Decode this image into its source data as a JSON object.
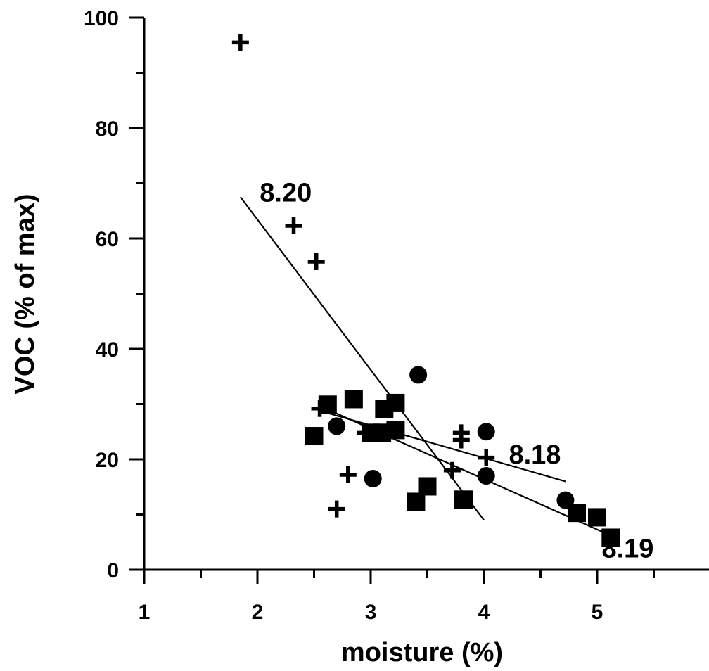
{
  "chart_data": {
    "type": "scatter",
    "title": "",
    "xlabel": "moisture (%)",
    "ylabel": "VOC (% of max)",
    "xlim": [
      1,
      6
    ],
    "ylim": [
      0,
      100
    ],
    "x_ticks": [
      {
        "value": 1,
        "label": "1"
      },
      {
        "value": 2,
        "label": "2"
      },
      {
        "value": 3,
        "label": "3"
      },
      {
        "value": 4,
        "label": "4"
      },
      {
        "value": 5,
        "label": "5"
      }
    ],
    "y_ticks": [
      {
        "value": 0,
        "label": "0"
      },
      {
        "value": 20,
        "label": "20"
      },
      {
        "value": 40,
        "label": "40"
      },
      {
        "value": 60,
        "label": "60"
      },
      {
        "value": 80,
        "label": "80"
      },
      {
        "value": 100,
        "label": "100"
      }
    ],
    "grid": false,
    "legend": "none",
    "series": [
      {
        "marker": "plus",
        "points": [
          [
            1.85,
            95.5
          ],
          [
            2.32,
            62.3
          ],
          [
            2.52,
            55.8
          ],
          [
            2.55,
            29.2
          ],
          [
            2.8,
            17.2
          ],
          [
            2.7,
            11
          ],
          [
            2.95,
            24.8
          ],
          [
            3.72,
            18
          ],
          [
            3.8,
            23.5
          ],
          [
            3.8,
            24.8
          ],
          [
            4.02,
            20.3
          ]
        ],
        "fit_line": [
          [
            1.85,
            67.5
          ],
          [
            4.0,
            9.0
          ]
        ],
        "annotation": {
          "text": "8.20",
          "x": 2.25,
          "y": 68.5
        }
      },
      {
        "marker": "circle",
        "points": [
          [
            2.7,
            26
          ],
          [
            3.02,
            16.5
          ],
          [
            3.42,
            35.3
          ],
          [
            4.02,
            25
          ],
          [
            4.02,
            17
          ],
          [
            4.72,
            12.6
          ]
        ],
        "fit_line": [
          [
            2.6,
            28.5
          ],
          [
            4.72,
            16
          ]
        ],
        "annotation": {
          "text": "8.18",
          "x": 4.45,
          "y": 21
        }
      },
      {
        "marker": "square",
        "points": [
          [
            2.5,
            24.2
          ],
          [
            2.62,
            29.9
          ],
          [
            2.85,
            30.9
          ],
          [
            3.0,
            24.8
          ],
          [
            3.1,
            24.8
          ],
          [
            3.12,
            29.1
          ],
          [
            3.22,
            30.2
          ],
          [
            3.22,
            25.3
          ],
          [
            3.4,
            12.3
          ],
          [
            3.5,
            15.1
          ],
          [
            3.82,
            12.7
          ],
          [
            4.82,
            10.3
          ],
          [
            5.0,
            9.5
          ],
          [
            5.12,
            5.8
          ]
        ],
        "fit_line": [
          [
            2.6,
            29.2
          ],
          [
            5.12,
            6.2
          ]
        ],
        "annotation": {
          "text": "8.19",
          "x": 5.27,
          "y": 4
        }
      }
    ]
  }
}
